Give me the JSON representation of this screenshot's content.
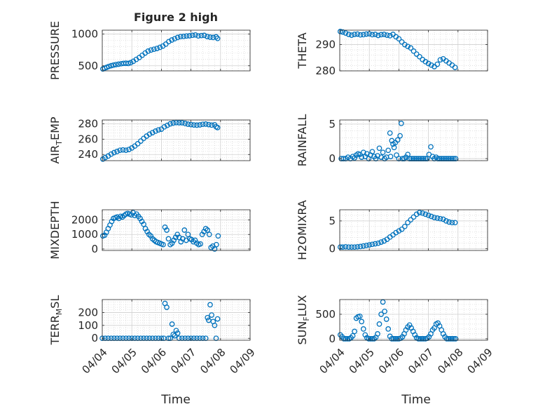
{
  "figure": {
    "title": "Figure 2 high",
    "x_label": "Time"
  },
  "style": {
    "marker_color": "#0072BD",
    "axis_color": "#262626",
    "grid_color": "#d0d0d0"
  },
  "chart_data": [
    {
      "id": "pressure",
      "type": "scatter",
      "ylabel": "PRESSURE",
      "ylim": [
        420,
        1060
      ],
      "yticks": [
        500,
        1000
      ],
      "xlim": [
        0,
        5
      ],
      "xticks": [
        0,
        1,
        2,
        3,
        4,
        5
      ],
      "xticklabels": [
        "04/04",
        "04/05",
        "04/06",
        "04/07",
        "04/08",
        "04/09"
      ],
      "show_xticklabels": false,
      "grid": true,
      "x": [
        0.02,
        0.08,
        0.15,
        0.22,
        0.3,
        0.38,
        0.46,
        0.55,
        0.64,
        0.72,
        0.8,
        0.88,
        0.96,
        1.05,
        1.15,
        1.25,
        1.35,
        1.45,
        1.55,
        1.65,
        1.75,
        1.85,
        1.95,
        2.05,
        2.15,
        2.25,
        2.35,
        2.45,
        2.55,
        2.65,
        2.75,
        2.85,
        2.95,
        3.05,
        3.15,
        3.25,
        3.35,
        3.45,
        3.55,
        3.65,
        3.75,
        3.85,
        3.9
      ],
      "y": [
        450,
        462,
        475,
        490,
        502,
        510,
        518,
        525,
        532,
        538,
        540,
        537,
        548,
        570,
        600,
        630,
        665,
        700,
        730,
        748,
        760,
        772,
        790,
        810,
        840,
        880,
        905,
        925,
        945,
        958,
        962,
        968,
        972,
        980,
        985,
        970,
        975,
        978,
        960,
        950,
        945,
        955,
        930
      ]
    },
    {
      "id": "theta",
      "type": "scatter",
      "ylabel": "THETA",
      "ylim": [
        280,
        295.5
      ],
      "yticks": [
        280,
        290
      ],
      "xlim": [
        0,
        5
      ],
      "xticks": [
        0,
        1,
        2,
        3,
        4,
        5
      ],
      "xticklabels": [
        "04/04",
        "04/05",
        "04/06",
        "04/07",
        "04/08",
        "04/09"
      ],
      "show_xticklabels": false,
      "grid": true,
      "x": [
        0.02,
        0.1,
        0.2,
        0.3,
        0.4,
        0.5,
        0.6,
        0.7,
        0.8,
        0.9,
        1.0,
        1.1,
        1.2,
        1.3,
        1.4,
        1.5,
        1.6,
        1.7,
        1.8,
        1.9,
        2.0,
        2.1,
        2.2,
        2.3,
        2.4,
        2.5,
        2.6,
        2.7,
        2.8,
        2.9,
        3.0,
        3.1,
        3.2,
        3.3,
        3.4,
        3.5,
        3.6,
        3.7,
        3.8,
        3.9
      ],
      "y": [
        295,
        294.8,
        294.4,
        293.9,
        293.6,
        293.9,
        294,
        293.7,
        293.8,
        294,
        294.1,
        293.8,
        293.9,
        293.5,
        293.8,
        293.9,
        293.6,
        293.4,
        293.9,
        293,
        292.2,
        291,
        290,
        289.3,
        288.7,
        287.5,
        286.4,
        285.4,
        284.3,
        283.5,
        282.8,
        282.2,
        281.6,
        282.5,
        284.2,
        284.6,
        283.8,
        283,
        282.2,
        281.3
      ]
    },
    {
      "id": "air_temp",
      "type": "scatter",
      "ylabel": "AIR",
      "ylabel_subscript": "T",
      "ylabel_suffix": "EMP",
      "ylim": [
        232,
        285
      ],
      "yticks": [
        240,
        260,
        280
      ],
      "xlim": [
        0,
        5
      ],
      "xticks": [
        0,
        1,
        2,
        3,
        4,
        5
      ],
      "xticklabels": [
        "04/04",
        "04/05",
        "04/06",
        "04/07",
        "04/08",
        "04/09"
      ],
      "show_xticklabels": false,
      "grid": true,
      "x": [
        0.02,
        0.1,
        0.2,
        0.3,
        0.4,
        0.5,
        0.6,
        0.7,
        0.8,
        0.9,
        1.0,
        1.1,
        1.2,
        1.3,
        1.4,
        1.5,
        1.6,
        1.7,
        1.8,
        1.9,
        2.0,
        2.1,
        2.2,
        2.3,
        2.4,
        2.5,
        2.6,
        2.7,
        2.8,
        2.9,
        3.0,
        3.1,
        3.2,
        3.3,
        3.4,
        3.5,
        3.6,
        3.7,
        3.8,
        3.85,
        3.9
      ],
      "y": [
        234,
        236,
        238,
        240.5,
        242.5,
        244,
        245.5,
        246,
        245.5,
        246.5,
        248.5,
        251,
        254,
        257.5,
        261,
        264,
        266.5,
        268.5,
        270.5,
        272,
        273,
        276,
        278,
        280,
        281,
        281.5,
        281.3,
        281.3,
        280.5,
        279.5,
        279,
        278.5,
        278.2,
        278.6,
        279.3,
        279.6,
        279,
        278.3,
        278.8,
        276,
        275
      ]
    },
    {
      "id": "rainfall",
      "type": "scatter",
      "ylabel": "RAINFALL",
      "ylim": [
        -0.3,
        5.6
      ],
      "yticks": [
        0,
        5
      ],
      "xlim": [
        0,
        5
      ],
      "xticks": [
        0,
        1,
        2,
        3,
        4,
        5
      ],
      "xticklabels": [
        "04/04",
        "04/05",
        "04/06",
        "04/07",
        "04/08",
        "04/09"
      ],
      "show_xticklabels": false,
      "grid": true,
      "x": [
        0.05,
        0.12,
        0.2,
        0.28,
        0.36,
        0.44,
        0.5,
        0.56,
        0.62,
        0.68,
        0.74,
        0.8,
        0.86,
        0.92,
        0.98,
        1.04,
        1.1,
        1.16,
        1.22,
        1.28,
        1.34,
        1.4,
        1.46,
        1.52,
        1.58,
        1.64,
        1.7,
        1.72,
        1.76,
        1.8,
        1.84,
        1.88,
        1.92,
        1.96,
        2.0,
        2.04,
        2.08,
        2.12,
        2.18,
        2.24,
        2.3,
        2.36,
        2.42,
        2.48,
        2.54,
        2.6,
        2.66,
        2.72,
        2.78,
        2.84,
        2.9,
        2.96,
        3.02,
        3.08,
        3.14,
        3.2,
        3.26,
        3.32,
        3.38,
        3.44,
        3.5,
        3.56,
        3.62,
        3.68,
        3.74,
        3.8,
        3.86,
        3.92
      ],
      "y": [
        0,
        0,
        0,
        0.2,
        0,
        0.3,
        0.1,
        0.5,
        0.7,
        0.6,
        0.2,
        0.9,
        0.3,
        0.7,
        0,
        0.5,
        1,
        0.3,
        0,
        0.4,
        1.5,
        0.2,
        0.9,
        0,
        0.2,
        1.2,
        3.7,
        0.3,
        2.6,
        2.1,
        1.6,
        2.3,
        0.5,
        2.7,
        0,
        3.3,
        5.1,
        0,
        0,
        0.2,
        0.6,
        0,
        0,
        0,
        0,
        0,
        0,
        0,
        0,
        0,
        0,
        0,
        0.6,
        1.7,
        0.3,
        0,
        0.2,
        0,
        0,
        0,
        0,
        0,
        0,
        0,
        0,
        0,
        0,
        0
      ]
    },
    {
      "id": "mixdepth",
      "type": "scatter",
      "ylabel": "MIXDEPTH",
      "ylim": [
        -100,
        2700
      ],
      "yticks": [
        0,
        1000,
        2000
      ],
      "xlim": [
        0,
        5
      ],
      "xticks": [
        0,
        1,
        2,
        3,
        4,
        5
      ],
      "xticklabels": [
        "04/04",
        "04/05",
        "04/06",
        "04/07",
        "04/08",
        "04/09"
      ],
      "show_xticklabels": false,
      "grid": true,
      "x": [
        0.02,
        0.08,
        0.14,
        0.2,
        0.26,
        0.32,
        0.38,
        0.44,
        0.5,
        0.56,
        0.62,
        0.68,
        0.74,
        0.8,
        0.86,
        0.92,
        0.98,
        1.04,
        1.1,
        1.16,
        1.22,
        1.28,
        1.34,
        1.4,
        1.46,
        1.52,
        1.58,
        1.64,
        1.7,
        1.76,
        1.82,
        1.88,
        1.94,
        2.0,
        2.06,
        2.12,
        2.18,
        2.24,
        2.3,
        2.36,
        2.42,
        2.48,
        2.54,
        2.6,
        2.66,
        2.72,
        2.78,
        2.84,
        2.9,
        2.96,
        3.02,
        3.08,
        3.14,
        3.2,
        3.26,
        3.32,
        3.38,
        3.44,
        3.5,
        3.56,
        3.62,
        3.68,
        3.74,
        3.8,
        3.86,
        3.92
      ],
      "y": [
        900,
        950,
        1150,
        1400,
        1650,
        1900,
        2100,
        2150,
        2200,
        2100,
        2250,
        2200,
        2300,
        2400,
        2450,
        2400,
        2350,
        2500,
        2300,
        2400,
        2250,
        2100,
        1900,
        1700,
        1400,
        1200,
        1000,
        900,
        700,
        600,
        500,
        450,
        400,
        350,
        300,
        1500,
        1300,
        700,
        300,
        400,
        600,
        800,
        1000,
        800,
        500,
        700,
        1300,
        600,
        1000,
        700,
        650,
        500,
        600,
        400,
        300,
        350,
        1000,
        1200,
        1400,
        1300,
        1000,
        100,
        200,
        0,
        300,
        900
      ]
    },
    {
      "id": "h2omixra",
      "type": "scatter",
      "ylabel": "H2OMIXRA",
      "ylim": [
        -0.3,
        7
      ],
      "yticks": [
        0,
        5
      ],
      "xlim": [
        0,
        5
      ],
      "xticks": [
        0,
        1,
        2,
        3,
        4,
        5
      ],
      "xticklabels": [
        "04/04",
        "04/05",
        "04/06",
        "04/07",
        "04/08",
        "04/09"
      ],
      "show_xticklabels": false,
      "grid": true,
      "x": [
        0.02,
        0.1,
        0.2,
        0.3,
        0.4,
        0.5,
        0.6,
        0.7,
        0.8,
        0.9,
        1.0,
        1.1,
        1.2,
        1.3,
        1.4,
        1.5,
        1.6,
        1.7,
        1.8,
        1.9,
        2.0,
        2.1,
        2.2,
        2.3,
        2.4,
        2.5,
        2.6,
        2.7,
        2.8,
        2.9,
        3.0,
        3.1,
        3.2,
        3.3,
        3.4,
        3.5,
        3.6,
        3.7,
        3.8,
        3.9
      ],
      "y": [
        0.3,
        0.3,
        0.35,
        0.3,
        0.3,
        0.3,
        0.35,
        0.4,
        0.5,
        0.6,
        0.7,
        0.8,
        0.9,
        1.0,
        1.2,
        1.4,
        1.7,
        2.1,
        2.5,
        2.9,
        3.2,
        3.5,
        4.0,
        4.7,
        5.2,
        5.7,
        6.2,
        6.5,
        6.4,
        6.2,
        6.0,
        5.8,
        5.6,
        5.5,
        5.4,
        5.3,
        5.0,
        4.8,
        4.7,
        4.7
      ]
    },
    {
      "id": "terr_msl",
      "type": "scatter",
      "ylabel": "TERR",
      "ylabel_subscript": "M",
      "ylabel_suffix": "SL",
      "ylim": [
        -15,
        300
      ],
      "yticks": [
        0,
        100,
        200
      ],
      "xlim": [
        0,
        5
      ],
      "xticks": [
        0,
        1,
        2,
        3,
        4,
        5
      ],
      "xticklabels": [
        "04/04",
        "04/05",
        "04/06",
        "04/07",
        "04/08",
        "04/09"
      ],
      "show_xticklabels": true,
      "grid": true,
      "x": [
        0.0,
        0.1,
        0.2,
        0.3,
        0.4,
        0.5,
        0.6,
        0.7,
        0.8,
        0.9,
        1.0,
        1.1,
        1.2,
        1.3,
        1.4,
        1.5,
        1.6,
        1.7,
        1.8,
        1.9,
        2.0,
        2.08,
        2.12,
        2.18,
        2.24,
        2.3,
        2.36,
        2.4,
        2.45,
        2.5,
        2.55,
        2.6,
        2.7,
        2.8,
        2.9,
        3.0,
        3.1,
        3.2,
        3.3,
        3.4,
        3.5,
        3.56,
        3.6,
        3.65,
        3.7,
        3.75,
        3.8,
        3.85,
        3.9
      ],
      "y": [
        0,
        0,
        0,
        0,
        0,
        0,
        0,
        0,
        0,
        0,
        0,
        0,
        0,
        0,
        0,
        0,
        0,
        0,
        0,
        0,
        0,
        0,
        270,
        240,
        0,
        0,
        110,
        30,
        20,
        60,
        40,
        0,
        0,
        0,
        0,
        0,
        0,
        0,
        0,
        0,
        0,
        160,
        140,
        260,
        180,
        130,
        100,
        0,
        150
      ]
    },
    {
      "id": "sun_flux",
      "type": "scatter",
      "ylabel": "SUN",
      "ylabel_subscript": "F",
      "ylabel_suffix": "LUX",
      "ylim": [
        -30,
        800
      ],
      "yticks": [
        0,
        500
      ],
      "xlim": [
        0,
        5
      ],
      "xticks": [
        0,
        1,
        2,
        3,
        4,
        5
      ],
      "xticklabels": [
        "04/04",
        "04/05",
        "04/06",
        "04/07",
        "04/08",
        "04/09"
      ],
      "show_xticklabels": true,
      "grid": true,
      "x": [
        0.02,
        0.08,
        0.14,
        0.2,
        0.26,
        0.32,
        0.38,
        0.44,
        0.5,
        0.56,
        0.62,
        0.68,
        0.74,
        0.8,
        0.86,
        0.92,
        0.98,
        1.04,
        1.1,
        1.16,
        1.22,
        1.28,
        1.34,
        1.4,
        1.46,
        1.52,
        1.58,
        1.64,
        1.7,
        1.76,
        1.82,
        1.88,
        1.94,
        2.0,
        2.06,
        2.12,
        2.18,
        2.24,
        2.3,
        2.36,
        2.42,
        2.48,
        2.54,
        2.6,
        2.66,
        2.72,
        2.78,
        2.84,
        2.9,
        2.96,
        3.02,
        3.08,
        3.14,
        3.2,
        3.26,
        3.32,
        3.38,
        3.44,
        3.5,
        3.56,
        3.62,
        3.68,
        3.74,
        3.8,
        3.86,
        3.92
      ],
      "y": [
        80,
        40,
        0,
        0,
        0,
        0,
        20,
        60,
        150,
        420,
        450,
        460,
        350,
        200,
        80,
        20,
        0,
        0,
        0,
        0,
        30,
        100,
        300,
        500,
        750,
        560,
        400,
        200,
        50,
        0,
        0,
        0,
        0,
        0,
        10,
        40,
        100,
        180,
        240,
        280,
        220,
        150,
        80,
        20,
        0,
        0,
        0,
        0,
        0,
        10,
        40,
        100,
        180,
        220,
        300,
        320,
        260,
        180,
        100,
        40,
        0,
        0,
        0,
        0,
        0,
        0
      ]
    }
  ]
}
